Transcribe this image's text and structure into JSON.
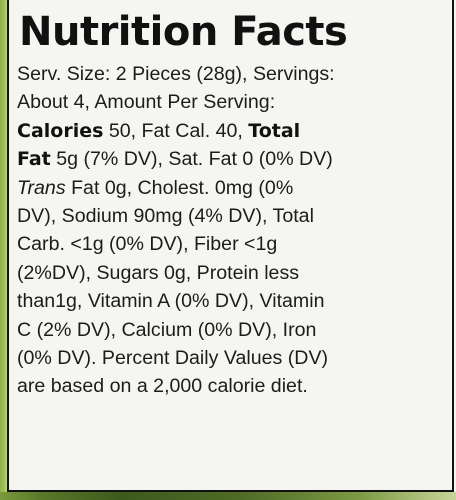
{
  "label": {
    "title": "Nutrition Facts",
    "lines": [
      {
        "parts": [
          {
            "t": "Serv. Size: 2 Pieces (28g), Servings:"
          }
        ]
      },
      {
        "parts": [
          {
            "t": "About 4, Amount Per Serving:"
          }
        ]
      },
      {
        "parts": [
          {
            "t": "Calories",
            "s": "b"
          },
          {
            "t": " 50, Fat Cal. 40, "
          },
          {
            "t": "Total",
            "s": "b"
          }
        ]
      },
      {
        "parts": [
          {
            "t": "Fat",
            "s": "b"
          },
          {
            "t": " 5g (7% DV), Sat. Fat 0 (0% DV)"
          }
        ]
      },
      {
        "parts": [
          {
            "t": "Trans",
            "s": "i"
          },
          {
            "t": " Fat 0g, Cholest. 0mg (0%"
          }
        ]
      },
      {
        "parts": [
          {
            "t": "DV), Sodium 90mg (4% DV), Total"
          }
        ]
      },
      {
        "parts": [
          {
            "t": "Carb. <1g (0% DV), Fiber <1g"
          }
        ]
      },
      {
        "parts": [
          {
            "t": "(2%DV), Sugars 0g, Protein less"
          }
        ]
      },
      {
        "parts": [
          {
            "t": "than1g, Vitamin A (0% DV), Vitamin"
          }
        ]
      },
      {
        "parts": [
          {
            "t": "C (2% DV), Calcium (0% DV), Iron"
          }
        ]
      },
      {
        "parts": [
          {
            "t": "(0% DV). Percent Daily Values (DV)"
          }
        ]
      },
      {
        "parts": [
          {
            "t": "are based on a 2,000 calorie diet."
          }
        ]
      }
    ]
  }
}
